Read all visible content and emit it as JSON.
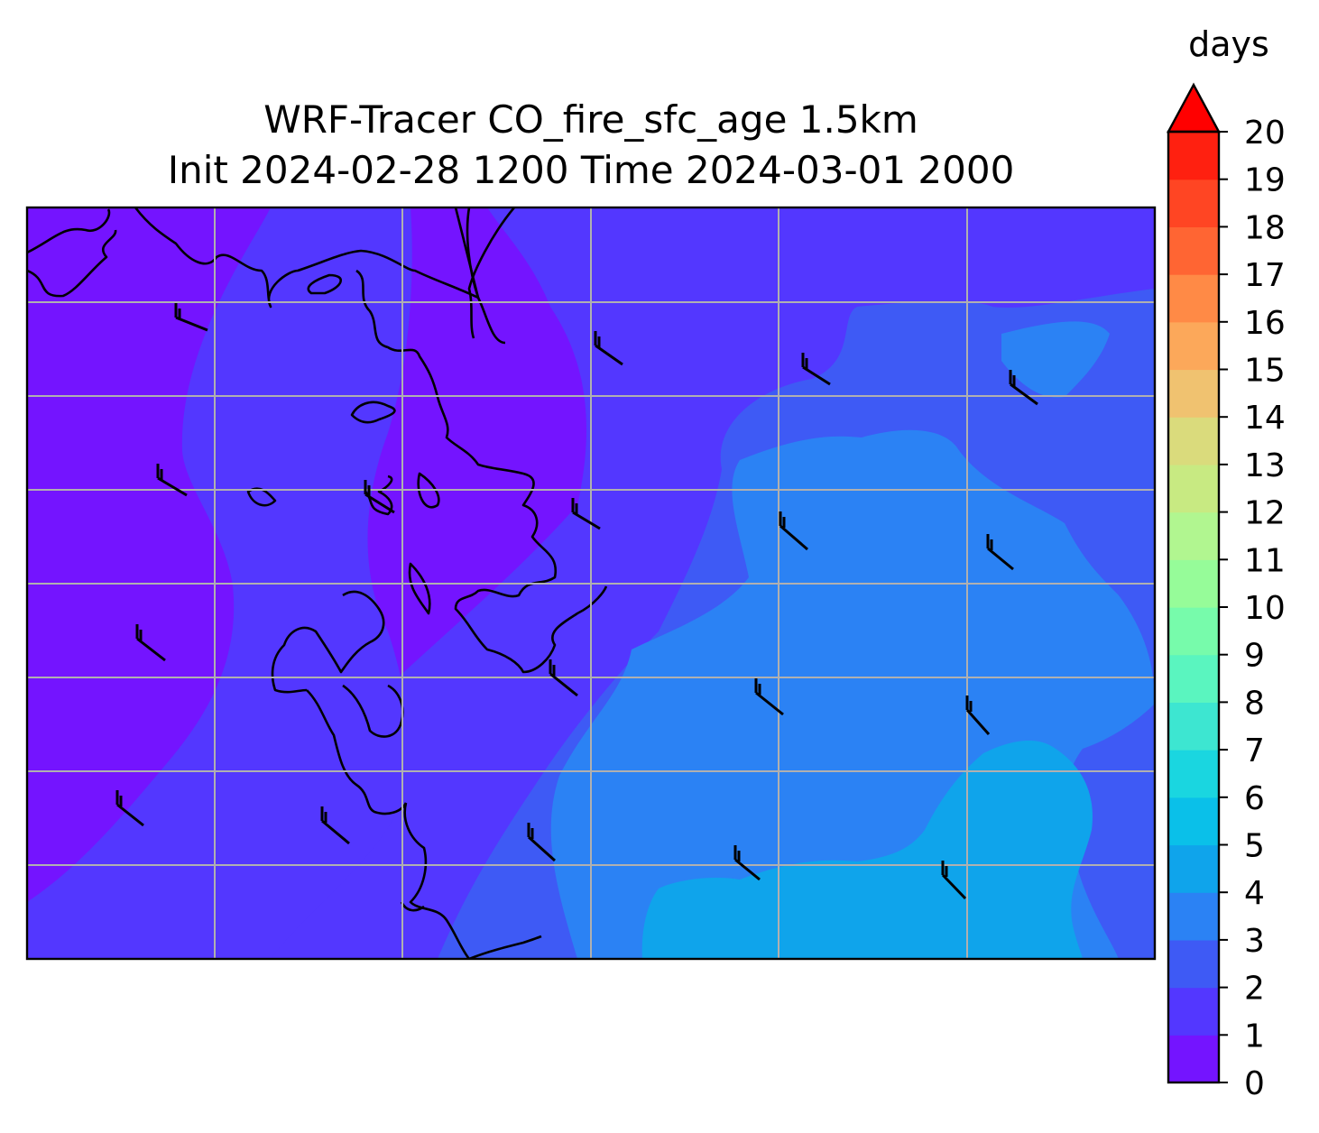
{
  "title_line1": "WRF-Tracer CO_fire_sfc_age 1.5km",
  "title_line2": "Init 2024-02-28 1200 Time 2024-03-01 2000",
  "colorbar": {
    "unit": "days",
    "ticks": [
      "0",
      "1",
      "2",
      "3",
      "4",
      "5",
      "6",
      "7",
      "8",
      "9",
      "10",
      "11",
      "12",
      "13",
      "14",
      "15",
      "16",
      "17",
      "18",
      "19",
      "20"
    ],
    "extend": "max",
    "colors": [
      "#7414ff",
      "#5337ff",
      "#3e5af5",
      "#2b82f4",
      "#0fa4eb",
      "#0ac0e9",
      "#1ad6e0",
      "#3de6d1",
      "#5af5bf",
      "#77fbab",
      "#96fc99",
      "#b1f690",
      "#c8ea82",
      "#dadb7c",
      "#f0c270",
      "#fca85a",
      "#ff8a46",
      "#ff6533",
      "#ff4523",
      "#ff2010"
    ],
    "extend_color": "#ff0000"
  },
  "map": {
    "background_color": "#7414ff",
    "level_colors": [
      "#7414ff",
      "#5337ff",
      "#3e5af5",
      "#2b82f4",
      "#0fa4eb"
    ],
    "gridlines": true
  }
}
